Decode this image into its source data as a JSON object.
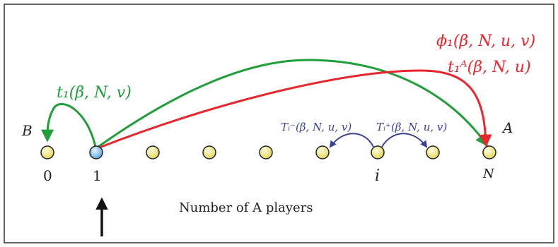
{
  "diagram": {
    "colors": {
      "green": "#1f9e3a",
      "red": "#e8262d",
      "navy": "#3a3f96",
      "node_yellow": "#f4ec8a",
      "node_blue": "#9fd0f0",
      "border": "#333333",
      "text": "#222222"
    },
    "end_labels": {
      "left": "B",
      "right": "A"
    },
    "node_labels": {
      "first": "0",
      "second": "1",
      "middle": "i",
      "last": "N"
    },
    "highlighted_node": "1",
    "axis_caption": "Number of A players",
    "transitions": {
      "t1": "t₁(β, N, v)",
      "phi1": "ϕ₁(β, N, u, v)",
      "t1A": "t₁ᴬ(β, N, u)",
      "Tminus": "Tᵢ⁻(β, N, u, v)",
      "Tplus": "Tᵢ⁺(β, N, u, v)"
    },
    "indicator_icon": "up-arrow-icon"
  }
}
